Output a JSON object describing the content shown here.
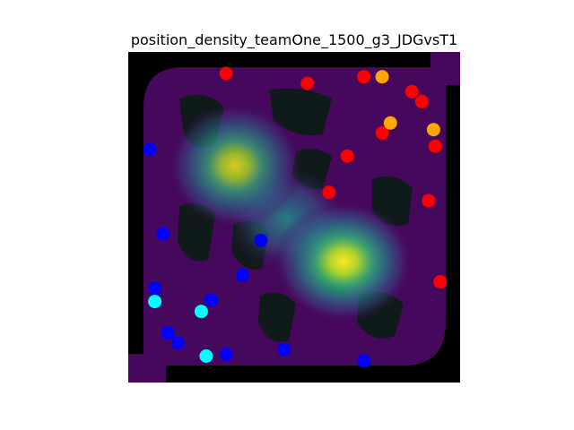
{
  "chart_data": {
    "type": "scatter",
    "title": "position_density_teamOne_1500_g3_JDGvsT1",
    "xlabel": "",
    "ylabel": "",
    "xlim": [
      0,
      100
    ],
    "ylim": [
      0,
      100
    ],
    "grid": false,
    "axes_visible": false,
    "background": {
      "kind": "density heatmap over map",
      "colormap": "viridis",
      "peaks": [
        {
          "x": 65,
          "y": 37,
          "intensity": 1.0
        },
        {
          "x": 32,
          "y": 65,
          "intensity": 0.82
        },
        {
          "x": 50,
          "y": 49,
          "intensity": 0.55
        }
      ]
    },
    "series": [
      {
        "color": "#ff0000",
        "points": [
          {
            "x": 29.5,
            "y": 93.5
          },
          {
            "x": 54,
            "y": 90.5
          },
          {
            "x": 71,
            "y": 92.5
          },
          {
            "x": 85.5,
            "y": 88
          },
          {
            "x": 88.5,
            "y": 85
          },
          {
            "x": 76.5,
            "y": 75.5
          },
          {
            "x": 92.5,
            "y": 71.5
          },
          {
            "x": 66,
            "y": 68.5
          },
          {
            "x": 60.5,
            "y": 57.5
          },
          {
            "x": 90.5,
            "y": 55
          },
          {
            "x": 94,
            "y": 30.5
          }
        ]
      },
      {
        "color": "#ffa500",
        "points": [
          {
            "x": 76.5,
            "y": 92.5
          },
          {
            "x": 79,
            "y": 78.5
          },
          {
            "x": 92,
            "y": 76.5
          }
        ]
      },
      {
        "color": "#0000ff",
        "points": [
          {
            "x": 6.5,
            "y": 70.5
          },
          {
            "x": 10.5,
            "y": 45
          },
          {
            "x": 40,
            "y": 43
          },
          {
            "x": 34.5,
            "y": 32.5
          },
          {
            "x": 8,
            "y": 28.5
          },
          {
            "x": 25,
            "y": 25
          },
          {
            "x": 12,
            "y": 15
          },
          {
            "x": 15,
            "y": 12
          },
          {
            "x": 29.5,
            "y": 8.5
          },
          {
            "x": 47,
            "y": 10
          },
          {
            "x": 71,
            "y": 6.5
          }
        ]
      },
      {
        "color": "#00ffff",
        "points": [
          {
            "x": 8,
            "y": 24.5
          },
          {
            "x": 22,
            "y": 21.5
          },
          {
            "x": 23.5,
            "y": 8
          }
        ]
      }
    ]
  }
}
